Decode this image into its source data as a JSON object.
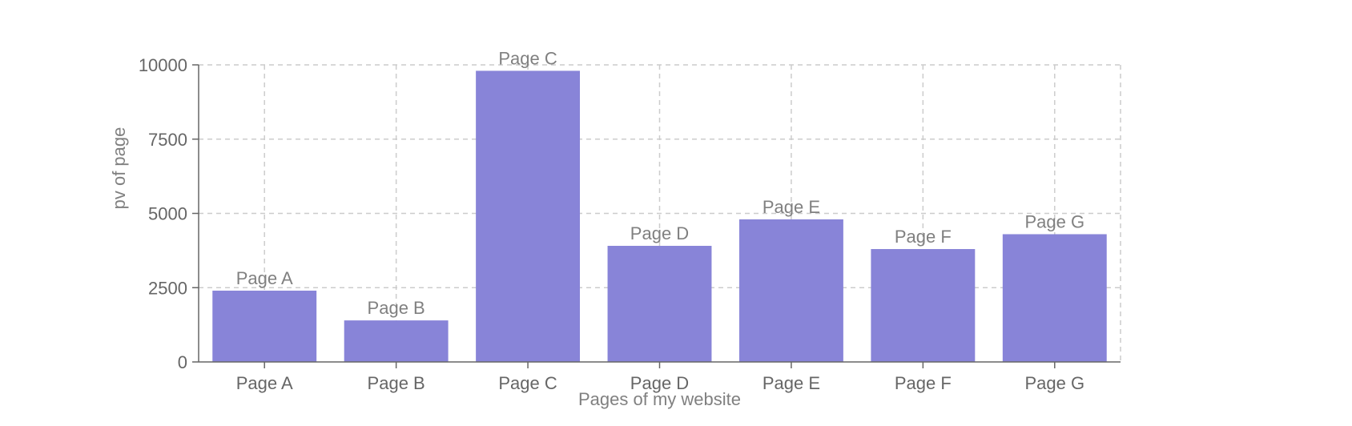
{
  "chart_data": {
    "type": "bar",
    "categories": [
      "Page A",
      "Page B",
      "Page C",
      "Page D",
      "Page E",
      "Page F",
      "Page G"
    ],
    "series": [
      {
        "values": [
          2400,
          1398,
          9800,
          3908,
          4800,
          3800,
          4300
        ]
      }
    ],
    "data_labels": [
      "Page A",
      "Page B",
      "Page C",
      "Page D",
      "Page E",
      "Page F",
      "Page G"
    ],
    "title": "",
    "xlabel": "Pages of my website",
    "ylabel": "pv of page",
    "ylim": [
      0,
      10000
    ],
    "yticks": [
      0,
      2500,
      5000,
      7500,
      10000
    ],
    "ytick_labels": [
      "0",
      "2500",
      "5000",
      "7500",
      "10000"
    ],
    "grid": true,
    "bar_color": "#8884d8",
    "grid_color": "#cccccc",
    "axis_color": "#666666"
  }
}
